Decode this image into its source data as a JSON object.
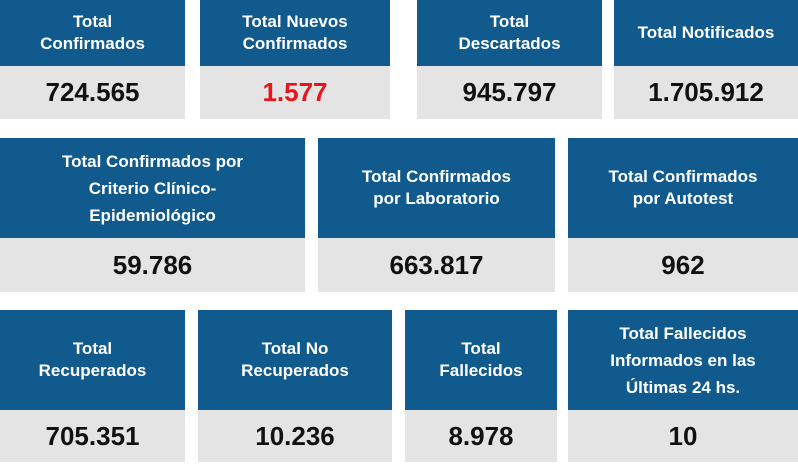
{
  "rows": [
    {
      "cards": [
        {
          "label": [
            "Total",
            "Confirmados"
          ],
          "value": "724.565"
        },
        {
          "label": [
            "Total Nuevos",
            "Confirmados"
          ],
          "value": "1.577"
        },
        {
          "label": [
            "Total",
            "Descartados"
          ],
          "value": "945.797"
        },
        {
          "label": [
            "Total Notificados"
          ],
          "value": "1.705.912"
        }
      ]
    },
    {
      "cards": [
        {
          "label": [
            "Total Confirmados por",
            "Criterio Clínico-",
            "Epidemiológico"
          ],
          "value": "59.786"
        },
        {
          "label": [
            "Total Confirmados",
            "por Laboratorio"
          ],
          "value": "663.817"
        },
        {
          "label": [
            "Total Confirmados",
            "por Autotest"
          ],
          "value": "962"
        }
      ]
    },
    {
      "cards": [
        {
          "label": [
            "Total",
            "Recuperados"
          ],
          "value": "705.351"
        },
        {
          "label": [
            "Total No",
            "Recuperados"
          ],
          "value": "10.236"
        },
        {
          "label": [
            "Total",
            "Fallecidos"
          ],
          "value": "8.978"
        },
        {
          "label": [
            "Total Fallecidos",
            "Informados en las",
            "Últimas 24 hs."
          ],
          "value": "10"
        }
      ]
    }
  ]
}
